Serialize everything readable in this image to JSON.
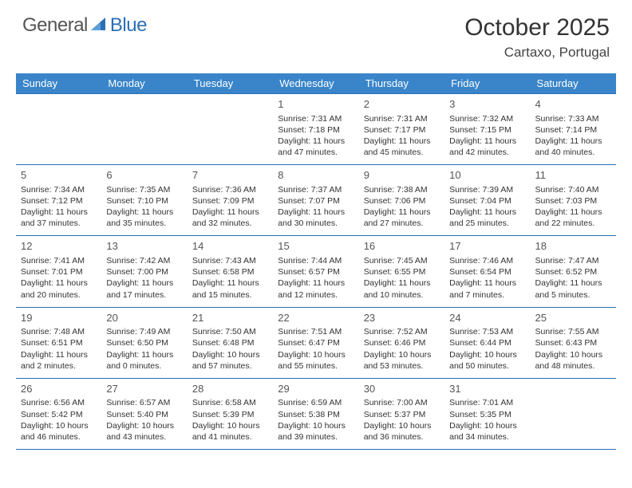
{
  "brand": {
    "part1": "General",
    "part2": "Blue"
  },
  "title": "October 2025",
  "location": "Cartaxo, Portugal",
  "colors": {
    "header_bg": "#3a85c9",
    "border": "#2b6fb5",
    "brand_blue": "#2b6fb5",
    "text": "#333333",
    "background": "#ffffff"
  },
  "weekdays": [
    "Sunday",
    "Monday",
    "Tuesday",
    "Wednesday",
    "Thursday",
    "Friday",
    "Saturday"
  ],
  "weeks": [
    [
      {
        "day": "",
        "sunrise": "",
        "sunset": "",
        "daylight1": "",
        "daylight2": ""
      },
      {
        "day": "",
        "sunrise": "",
        "sunset": "",
        "daylight1": "",
        "daylight2": ""
      },
      {
        "day": "",
        "sunrise": "",
        "sunset": "",
        "daylight1": "",
        "daylight2": ""
      },
      {
        "day": "1",
        "sunrise": "Sunrise: 7:31 AM",
        "sunset": "Sunset: 7:18 PM",
        "daylight1": "Daylight: 11 hours",
        "daylight2": "and 47 minutes."
      },
      {
        "day": "2",
        "sunrise": "Sunrise: 7:31 AM",
        "sunset": "Sunset: 7:17 PM",
        "daylight1": "Daylight: 11 hours",
        "daylight2": "and 45 minutes."
      },
      {
        "day": "3",
        "sunrise": "Sunrise: 7:32 AM",
        "sunset": "Sunset: 7:15 PM",
        "daylight1": "Daylight: 11 hours",
        "daylight2": "and 42 minutes."
      },
      {
        "day": "4",
        "sunrise": "Sunrise: 7:33 AM",
        "sunset": "Sunset: 7:14 PM",
        "daylight1": "Daylight: 11 hours",
        "daylight2": "and 40 minutes."
      }
    ],
    [
      {
        "day": "5",
        "sunrise": "Sunrise: 7:34 AM",
        "sunset": "Sunset: 7:12 PM",
        "daylight1": "Daylight: 11 hours",
        "daylight2": "and 37 minutes."
      },
      {
        "day": "6",
        "sunrise": "Sunrise: 7:35 AM",
        "sunset": "Sunset: 7:10 PM",
        "daylight1": "Daylight: 11 hours",
        "daylight2": "and 35 minutes."
      },
      {
        "day": "7",
        "sunrise": "Sunrise: 7:36 AM",
        "sunset": "Sunset: 7:09 PM",
        "daylight1": "Daylight: 11 hours",
        "daylight2": "and 32 minutes."
      },
      {
        "day": "8",
        "sunrise": "Sunrise: 7:37 AM",
        "sunset": "Sunset: 7:07 PM",
        "daylight1": "Daylight: 11 hours",
        "daylight2": "and 30 minutes."
      },
      {
        "day": "9",
        "sunrise": "Sunrise: 7:38 AM",
        "sunset": "Sunset: 7:06 PM",
        "daylight1": "Daylight: 11 hours",
        "daylight2": "and 27 minutes."
      },
      {
        "day": "10",
        "sunrise": "Sunrise: 7:39 AM",
        "sunset": "Sunset: 7:04 PM",
        "daylight1": "Daylight: 11 hours",
        "daylight2": "and 25 minutes."
      },
      {
        "day": "11",
        "sunrise": "Sunrise: 7:40 AM",
        "sunset": "Sunset: 7:03 PM",
        "daylight1": "Daylight: 11 hours",
        "daylight2": "and 22 minutes."
      }
    ],
    [
      {
        "day": "12",
        "sunrise": "Sunrise: 7:41 AM",
        "sunset": "Sunset: 7:01 PM",
        "daylight1": "Daylight: 11 hours",
        "daylight2": "and 20 minutes."
      },
      {
        "day": "13",
        "sunrise": "Sunrise: 7:42 AM",
        "sunset": "Sunset: 7:00 PM",
        "daylight1": "Daylight: 11 hours",
        "daylight2": "and 17 minutes."
      },
      {
        "day": "14",
        "sunrise": "Sunrise: 7:43 AM",
        "sunset": "Sunset: 6:58 PM",
        "daylight1": "Daylight: 11 hours",
        "daylight2": "and 15 minutes."
      },
      {
        "day": "15",
        "sunrise": "Sunrise: 7:44 AM",
        "sunset": "Sunset: 6:57 PM",
        "daylight1": "Daylight: 11 hours",
        "daylight2": "and 12 minutes."
      },
      {
        "day": "16",
        "sunrise": "Sunrise: 7:45 AM",
        "sunset": "Sunset: 6:55 PM",
        "daylight1": "Daylight: 11 hours",
        "daylight2": "and 10 minutes."
      },
      {
        "day": "17",
        "sunrise": "Sunrise: 7:46 AM",
        "sunset": "Sunset: 6:54 PM",
        "daylight1": "Daylight: 11 hours",
        "daylight2": "and 7 minutes."
      },
      {
        "day": "18",
        "sunrise": "Sunrise: 7:47 AM",
        "sunset": "Sunset: 6:52 PM",
        "daylight1": "Daylight: 11 hours",
        "daylight2": "and 5 minutes."
      }
    ],
    [
      {
        "day": "19",
        "sunrise": "Sunrise: 7:48 AM",
        "sunset": "Sunset: 6:51 PM",
        "daylight1": "Daylight: 11 hours",
        "daylight2": "and 2 minutes."
      },
      {
        "day": "20",
        "sunrise": "Sunrise: 7:49 AM",
        "sunset": "Sunset: 6:50 PM",
        "daylight1": "Daylight: 11 hours",
        "daylight2": "and 0 minutes."
      },
      {
        "day": "21",
        "sunrise": "Sunrise: 7:50 AM",
        "sunset": "Sunset: 6:48 PM",
        "daylight1": "Daylight: 10 hours",
        "daylight2": "and 57 minutes."
      },
      {
        "day": "22",
        "sunrise": "Sunrise: 7:51 AM",
        "sunset": "Sunset: 6:47 PM",
        "daylight1": "Daylight: 10 hours",
        "daylight2": "and 55 minutes."
      },
      {
        "day": "23",
        "sunrise": "Sunrise: 7:52 AM",
        "sunset": "Sunset: 6:46 PM",
        "daylight1": "Daylight: 10 hours",
        "daylight2": "and 53 minutes."
      },
      {
        "day": "24",
        "sunrise": "Sunrise: 7:53 AM",
        "sunset": "Sunset: 6:44 PM",
        "daylight1": "Daylight: 10 hours",
        "daylight2": "and 50 minutes."
      },
      {
        "day": "25",
        "sunrise": "Sunrise: 7:55 AM",
        "sunset": "Sunset: 6:43 PM",
        "daylight1": "Daylight: 10 hours",
        "daylight2": "and 48 minutes."
      }
    ],
    [
      {
        "day": "26",
        "sunrise": "Sunrise: 6:56 AM",
        "sunset": "Sunset: 5:42 PM",
        "daylight1": "Daylight: 10 hours",
        "daylight2": "and 46 minutes."
      },
      {
        "day": "27",
        "sunrise": "Sunrise: 6:57 AM",
        "sunset": "Sunset: 5:40 PM",
        "daylight1": "Daylight: 10 hours",
        "daylight2": "and 43 minutes."
      },
      {
        "day": "28",
        "sunrise": "Sunrise: 6:58 AM",
        "sunset": "Sunset: 5:39 PM",
        "daylight1": "Daylight: 10 hours",
        "daylight2": "and 41 minutes."
      },
      {
        "day": "29",
        "sunrise": "Sunrise: 6:59 AM",
        "sunset": "Sunset: 5:38 PM",
        "daylight1": "Daylight: 10 hours",
        "daylight2": "and 39 minutes."
      },
      {
        "day": "30",
        "sunrise": "Sunrise: 7:00 AM",
        "sunset": "Sunset: 5:37 PM",
        "daylight1": "Daylight: 10 hours",
        "daylight2": "and 36 minutes."
      },
      {
        "day": "31",
        "sunrise": "Sunrise: 7:01 AM",
        "sunset": "Sunset: 5:35 PM",
        "daylight1": "Daylight: 10 hours",
        "daylight2": "and 34 minutes."
      },
      {
        "day": "",
        "sunrise": "",
        "sunset": "",
        "daylight1": "",
        "daylight2": ""
      }
    ]
  ]
}
